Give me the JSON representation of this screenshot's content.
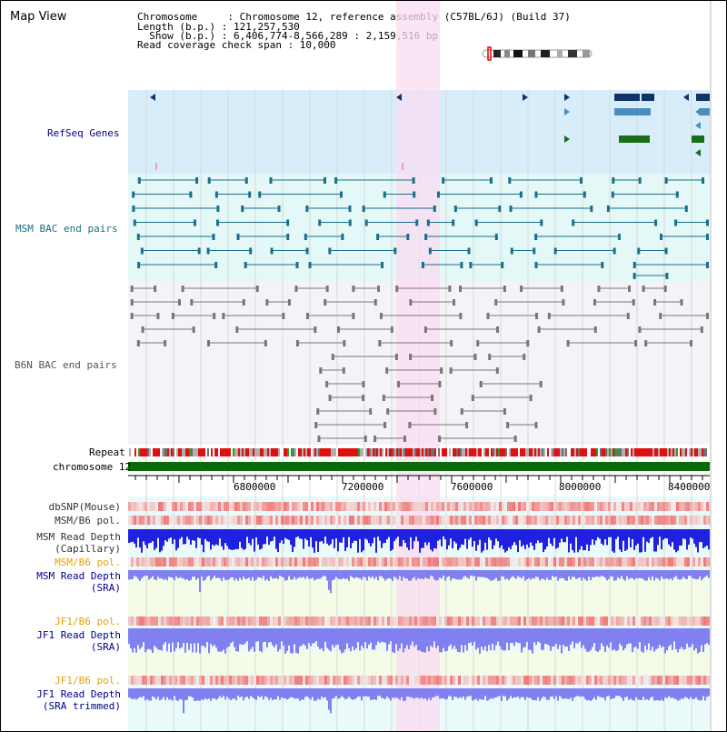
{
  "title": "Map View",
  "info": {
    "line1": "Chromosome     : Chromosome 12, reference assembly (C57BL/6J) (Build 37)",
    "line2": "Length (b.p.) : 121,257,530",
    "line3": "  Show (b.p.) : 6,406,774-8,566,289 : 2,159,516 bp",
    "line4": "Read coverage check span : 10,000"
  },
  "tracks": {
    "refseq": "RefSeq Genes",
    "msm_bac": "MSM BAC end pairs",
    "b6n_bac": "B6N BAC end pairs",
    "repeat": "Repeat",
    "chromosome": "chromosome 12"
  },
  "axis": {
    "ticks": [
      "6800000",
      "7200000",
      "7600000",
      "8000000",
      "8400000"
    ]
  },
  "lower_tracks": {
    "dbsnp": "dbSNP(Mouse)",
    "msm_b6_pol": "MSM/B6 pol.",
    "msm_depth_cap_1": "MSM Read Depth",
    "msm_depth_cap_2": "(Capillary)",
    "msm_b6_pol_2": "MSM/B6 pol.",
    "msm_depth_sra_1": "MSM Read Depth",
    "msm_depth_sra_2": "(SRA)",
    "jf1_b6_pol": "JF1/B6 pol.",
    "jf1_depth_sra_1": "JF1 Read Depth",
    "jf1_depth_sra_2": "(SRA)",
    "jf1_b6_pol_2": "JF1/B6 pol.",
    "jf1_depth_trim_1": "JF1 Read Depth",
    "jf1_depth_trim_2": "(SRA trimmed)"
  },
  "colors": {
    "highlight": "#f9dcf2",
    "refseq_bg": "#d7eefa",
    "bac_bg": "#e4f8f8",
    "b6n_bg": "#f4f4f8",
    "msm_teal": "#1a6f8a",
    "b6n_gray": "#777777",
    "refseq_navy": "#10336a",
    "refseq_green": "#1a6e1a",
    "chromosome_green": "#0a6a0a",
    "label_navy": "#00008b",
    "label_orange": "#e8a000",
    "depth_blue": "#2020e0",
    "depth_light": "#8080f0"
  }
}
